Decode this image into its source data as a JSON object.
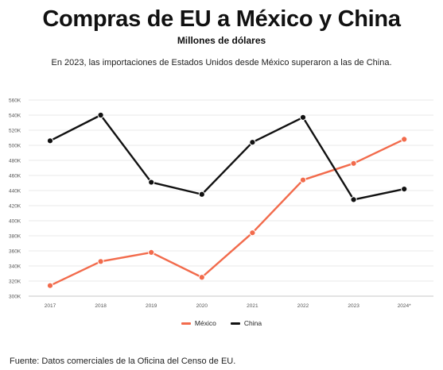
{
  "title": "Compras de EU a México y China",
  "subtitle": "Millones de dólares",
  "description": "En 2023, las importaciones de Estados Unidos desde México superaron a las de China.",
  "source": "Fuente: Datos comerciales de la Oficina del Censo de EU.",
  "chart_data": {
    "type": "line",
    "title": "",
    "xlabel": "",
    "ylabel": "",
    "categories": [
      "2017",
      "2018",
      "2019",
      "2020",
      "2021",
      "2022",
      "2023",
      "2024*"
    ],
    "ylim": [
      300000,
      560000
    ],
    "yticks": [
      300000,
      320000,
      340000,
      360000,
      380000,
      400000,
      420000,
      440000,
      460000,
      480000,
      500000,
      520000,
      540000,
      560000
    ],
    "ytick_labels": [
      "300K",
      "320K",
      "340K",
      "360K",
      "380K",
      "400K",
      "420K",
      "440K",
      "460K",
      "480K",
      "500K",
      "520K",
      "540K",
      "560K"
    ],
    "grid": true,
    "legend_position": "bottom-center",
    "series": [
      {
        "name": "México",
        "color": "#f26b4c",
        "values": [
          314000,
          346000,
          358000,
          325000,
          384000,
          454000,
          476000,
          508000
        ]
      },
      {
        "name": "China",
        "color": "#111111",
        "values": [
          506000,
          540000,
          451000,
          435000,
          504000,
          537000,
          428000,
          442000
        ]
      }
    ]
  }
}
